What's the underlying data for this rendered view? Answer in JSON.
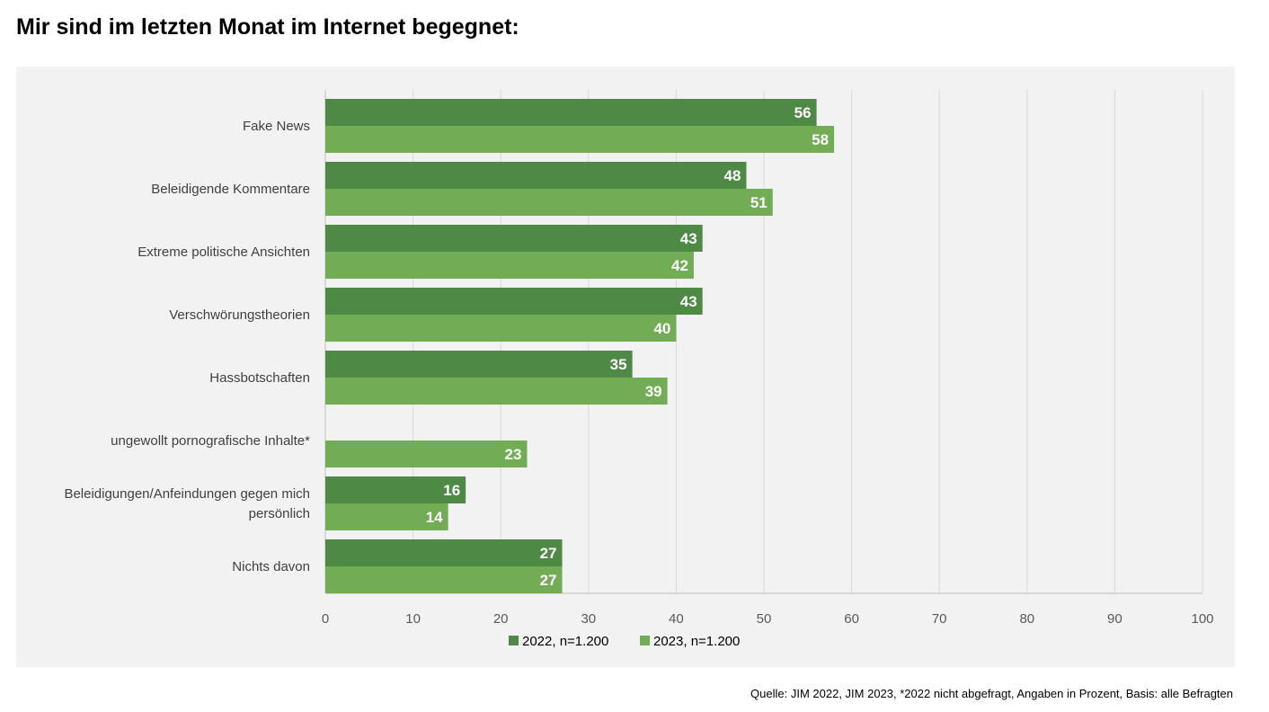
{
  "title": "Mir sind im letzten Monat im Internet begegnet:",
  "source": "Quelle: JIM 2022, JIM 2023, *2022 nicht abgefragt, Angaben in Prozent, Basis: alle Befragten",
  "colors": {
    "2022": "#4e8a45",
    "2023": "#72ad56",
    "panel": "#f2f2f2",
    "grid": "#d9d9d9"
  },
  "chart_data": {
    "type": "bar",
    "orientation": "horizontal",
    "categories": [
      [
        "Fake News"
      ],
      [
        "Beleidigende Kommentare"
      ],
      [
        "Extreme politische Ansichten"
      ],
      [
        "Verschwörungstheorien"
      ],
      [
        "Hassbotschaften"
      ],
      [
        "ungewollt pornografische Inhalte*"
      ],
      [
        "Beleidigungen/Anfeindungen gegen mich",
        "persönlich"
      ],
      [
        "Nichts davon"
      ]
    ],
    "series": [
      {
        "name": "2022, n=1.200",
        "values": [
          56,
          48,
          43,
          43,
          35,
          null,
          16,
          27
        ]
      },
      {
        "name": "2023, n=1.200",
        "values": [
          58,
          51,
          42,
          40,
          39,
          23,
          14,
          27
        ]
      }
    ],
    "xlim": [
      0,
      100
    ],
    "xticks": [
      0,
      10,
      20,
      30,
      40,
      50,
      60,
      70,
      80,
      90,
      100
    ],
    "grid": "vertical",
    "data_labels": true,
    "legend": "bottom"
  }
}
